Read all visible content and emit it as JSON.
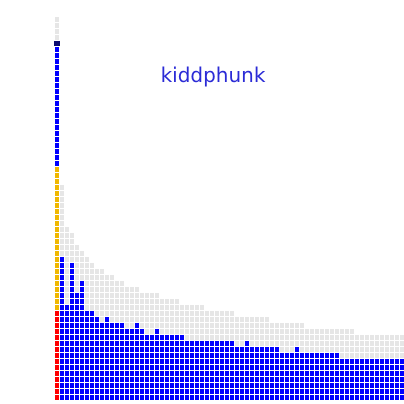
{
  "chart_data": {
    "type": "bar",
    "title": "kiddphunk",
    "xlabel": "",
    "ylabel": "",
    "grid": false,
    "legend": "none",
    "colors": {
      "background_grid": "#e6e6e6",
      "base": "#0000ff",
      "highlight": "#f0b800",
      "alert": "#ff0000",
      "title": "#2b2bd6",
      "cap": "#0b0b6f"
    },
    "cells_per_column": 64,
    "columns": [
      {
        "index": 1,
        "envelope": 64,
        "fill": 59,
        "highlight": 39,
        "alert": 15,
        "cap": true
      },
      {
        "index": 2,
        "envelope": 36,
        "fill": 24,
        "highlight": 0,
        "alert": 0
      },
      {
        "index": 3,
        "envelope": 29,
        "fill": 16,
        "highlight": 0,
        "alert": 0
      },
      {
        "index": 4,
        "envelope": 28,
        "fill": 23,
        "highlight": 0,
        "alert": 0
      },
      {
        "index": 5,
        "envelope": 26,
        "fill": 18,
        "highlight": 0,
        "alert": 0
      },
      {
        "index": 6,
        "envelope": 25,
        "fill": 20,
        "highlight": 0,
        "alert": 0
      },
      {
        "index": 7,
        "envelope": 24,
        "fill": 15,
        "highlight": 0,
        "alert": 0
      },
      {
        "index": 8,
        "envelope": 23,
        "fill": 15,
        "highlight": 0,
        "alert": 0
      },
      {
        "index": 9,
        "envelope": 22,
        "fill": 14,
        "highlight": 0,
        "alert": 0
      },
      {
        "index": 10,
        "envelope": 22,
        "fill": 13,
        "highlight": 0,
        "alert": 0
      },
      {
        "index": 11,
        "envelope": 21,
        "fill": 14,
        "highlight": 0,
        "alert": 0
      },
      {
        "index": 12,
        "envelope": 21,
        "fill": 13,
        "highlight": 0,
        "alert": 0
      },
      {
        "index": 13,
        "envelope": 20,
        "fill": 13,
        "highlight": 0,
        "alert": 0
      },
      {
        "index": 14,
        "envelope": 20,
        "fill": 13,
        "highlight": 0,
        "alert": 0
      },
      {
        "index": 15,
        "envelope": 19,
        "fill": 12,
        "highlight": 0,
        "alert": 0
      },
      {
        "index": 16,
        "envelope": 19,
        "fill": 12,
        "highlight": 0,
        "alert": 0
      },
      {
        "index": 17,
        "envelope": 19,
        "fill": 13,
        "highlight": 0,
        "alert": 0
      },
      {
        "index": 18,
        "envelope": 18,
        "fill": 12,
        "highlight": 0,
        "alert": 0
      },
      {
        "index": 19,
        "envelope": 18,
        "fill": 11,
        "highlight": 0,
        "alert": 0
      },
      {
        "index": 20,
        "envelope": 18,
        "fill": 11,
        "highlight": 0,
        "alert": 0
      },
      {
        "index": 21,
        "envelope": 18,
        "fill": 12,
        "highlight": 0,
        "alert": 0
      },
      {
        "index": 22,
        "envelope": 17,
        "fill": 11,
        "highlight": 0,
        "alert": 0
      },
      {
        "index": 23,
        "envelope": 17,
        "fill": 11,
        "highlight": 0,
        "alert": 0
      },
      {
        "index": 24,
        "envelope": 17,
        "fill": 11,
        "highlight": 0,
        "alert": 0
      },
      {
        "index": 25,
        "envelope": 17,
        "fill": 11,
        "highlight": 0,
        "alert": 0
      },
      {
        "index": 26,
        "envelope": 16,
        "fill": 11,
        "highlight": 0,
        "alert": 0
      },
      {
        "index": 27,
        "envelope": 16,
        "fill": 10,
        "highlight": 0,
        "alert": 0
      },
      {
        "index": 28,
        "envelope": 16,
        "fill": 10,
        "highlight": 0,
        "alert": 0
      },
      {
        "index": 29,
        "envelope": 16,
        "fill": 10,
        "highlight": 0,
        "alert": 0
      },
      {
        "index": 30,
        "envelope": 16,
        "fill": 10,
        "highlight": 0,
        "alert": 0
      },
      {
        "index": 31,
        "envelope": 15,
        "fill": 10,
        "highlight": 0,
        "alert": 0
      },
      {
        "index": 32,
        "envelope": 15,
        "fill": 10,
        "highlight": 0,
        "alert": 0
      },
      {
        "index": 33,
        "envelope": 15,
        "fill": 10,
        "highlight": 0,
        "alert": 0
      },
      {
        "index": 34,
        "envelope": 15,
        "fill": 10,
        "highlight": 0,
        "alert": 0
      },
      {
        "index": 35,
        "envelope": 15,
        "fill": 10,
        "highlight": 0,
        "alert": 0
      },
      {
        "index": 36,
        "envelope": 15,
        "fill": 10,
        "highlight": 0,
        "alert": 0
      },
      {
        "index": 37,
        "envelope": 14,
        "fill": 9,
        "highlight": 0,
        "alert": 0
      },
      {
        "index": 38,
        "envelope": 14,
        "fill": 9,
        "highlight": 0,
        "alert": 0
      },
      {
        "index": 39,
        "envelope": 14,
        "fill": 10,
        "highlight": 0,
        "alert": 0
      },
      {
        "index": 40,
        "envelope": 14,
        "fill": 9,
        "highlight": 0,
        "alert": 0
      },
      {
        "index": 41,
        "envelope": 14,
        "fill": 9,
        "highlight": 0,
        "alert": 0
      },
      {
        "index": 42,
        "envelope": 14,
        "fill": 9,
        "highlight": 0,
        "alert": 0
      },
      {
        "index": 43,
        "envelope": 14,
        "fill": 9,
        "highlight": 0,
        "alert": 0
      },
      {
        "index": 44,
        "envelope": 13,
        "fill": 9,
        "highlight": 0,
        "alert": 0
      },
      {
        "index": 45,
        "envelope": 13,
        "fill": 9,
        "highlight": 0,
        "alert": 0
      },
      {
        "index": 46,
        "envelope": 13,
        "fill": 8,
        "highlight": 0,
        "alert": 0
      },
      {
        "index": 47,
        "envelope": 13,
        "fill": 8,
        "highlight": 0,
        "alert": 0
      },
      {
        "index": 48,
        "envelope": 13,
        "fill": 8,
        "highlight": 0,
        "alert": 0
      },
      {
        "index": 49,
        "envelope": 13,
        "fill": 9,
        "highlight": 0,
        "alert": 0
      },
      {
        "index": 50,
        "envelope": 13,
        "fill": 8,
        "highlight": 0,
        "alert": 0
      },
      {
        "index": 51,
        "envelope": 12,
        "fill": 8,
        "highlight": 0,
        "alert": 0
      },
      {
        "index": 52,
        "envelope": 12,
        "fill": 8,
        "highlight": 0,
        "alert": 0
      },
      {
        "index": 53,
        "envelope": 12,
        "fill": 8,
        "highlight": 0,
        "alert": 0
      },
      {
        "index": 54,
        "envelope": 12,
        "fill": 8,
        "highlight": 0,
        "alert": 0
      },
      {
        "index": 55,
        "envelope": 12,
        "fill": 8,
        "highlight": 0,
        "alert": 0
      },
      {
        "index": 56,
        "envelope": 12,
        "fill": 8,
        "highlight": 0,
        "alert": 0
      },
      {
        "index": 57,
        "envelope": 12,
        "fill": 8,
        "highlight": 0,
        "alert": 0
      },
      {
        "index": 58,
        "envelope": 12,
        "fill": 7,
        "highlight": 0,
        "alert": 0
      },
      {
        "index": 59,
        "envelope": 12,
        "fill": 7,
        "highlight": 0,
        "alert": 0
      },
      {
        "index": 60,
        "envelope": 12,
        "fill": 7,
        "highlight": 0,
        "alert": 0
      },
      {
        "index": 61,
        "envelope": 11,
        "fill": 7,
        "highlight": 0,
        "alert": 0
      },
      {
        "index": 62,
        "envelope": 11,
        "fill": 7,
        "highlight": 0,
        "alert": 0
      },
      {
        "index": 63,
        "envelope": 11,
        "fill": 7,
        "highlight": 0,
        "alert": 0
      },
      {
        "index": 64,
        "envelope": 11,
        "fill": 7,
        "highlight": 0,
        "alert": 0
      },
      {
        "index": 65,
        "envelope": 11,
        "fill": 7,
        "highlight": 0,
        "alert": 0
      },
      {
        "index": 66,
        "envelope": 11,
        "fill": 7,
        "highlight": 0,
        "alert": 0
      },
      {
        "index": 67,
        "envelope": 11,
        "fill": 7,
        "highlight": 0,
        "alert": 0
      },
      {
        "index": 68,
        "envelope": 11,
        "fill": 7,
        "highlight": 0,
        "alert": 0
      },
      {
        "index": 69,
        "envelope": 11,
        "fill": 7,
        "highlight": 0,
        "alert": 0
      },
      {
        "index": 70,
        "envelope": 11,
        "fill": 7,
        "highlight": 0,
        "alert": 0
      },
      {
        "index": 71,
        "envelope": 11,
        "fill": 7,
        "highlight": 0,
        "alert": 0
      },
      {
        "index": 72,
        "envelope": 11,
        "fill": 7,
        "highlight": 0,
        "alert": 0
      }
    ]
  }
}
